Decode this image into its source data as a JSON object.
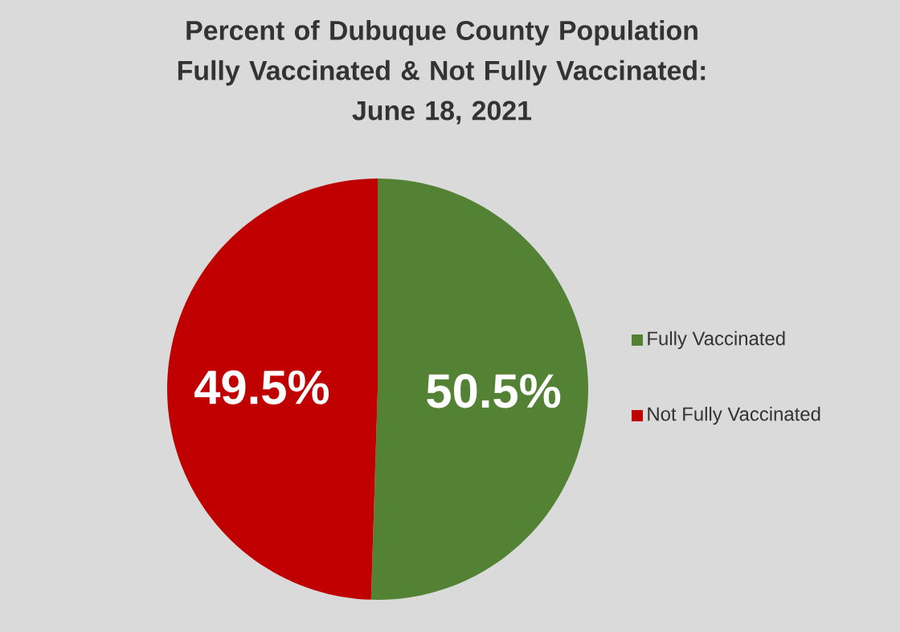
{
  "chart_data": {
    "type": "pie",
    "title": "Percent of Dubuque County Population\nFully Vaccinated & Not Fully Vaccinated:\nJune 18, 2021",
    "categories": [
      "Fully Vaccinated",
      "Not Fully Vaccinated"
    ],
    "values": [
      50.5,
      49.5
    ],
    "colors": [
      "#548235",
      "#c00000"
    ],
    "value_labels": [
      "50.5%",
      "49.5%"
    ],
    "legend": "right"
  }
}
